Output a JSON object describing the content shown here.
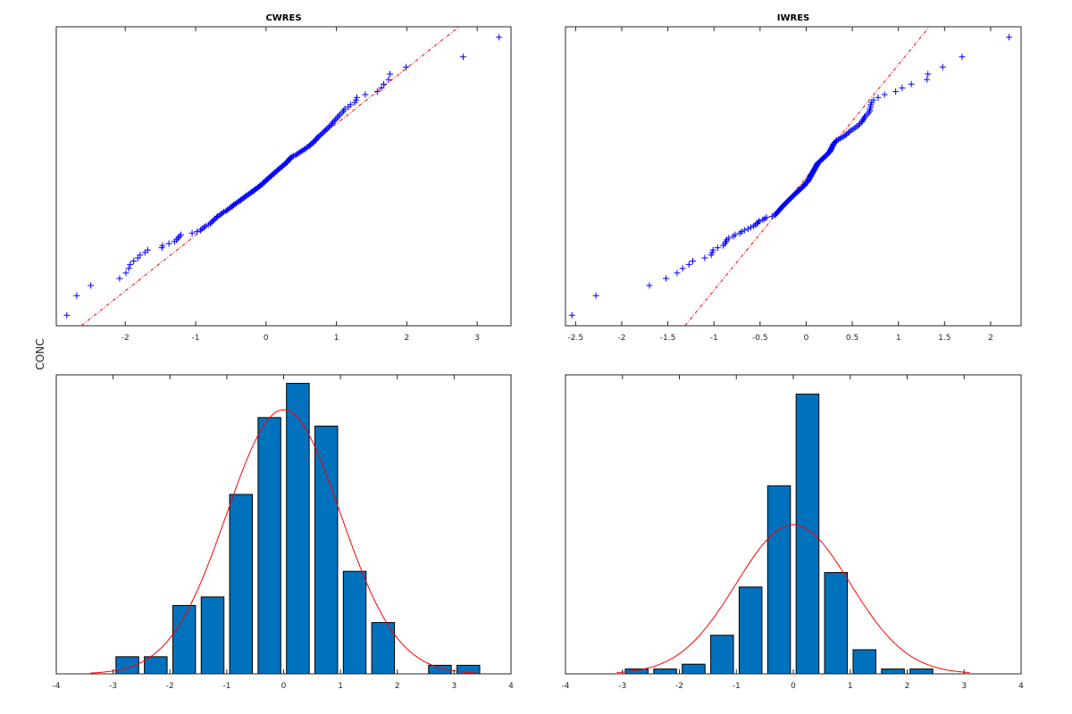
{
  "figure": {
    "ylabel": "CONC"
  },
  "colors": {
    "bar": "#0072BD",
    "bar_edge": "#000000",
    "fit": "#FF0000",
    "points": "#0000FF",
    "refline": "#FF0000",
    "axes": "#262626"
  },
  "chart_data": [
    {
      "type": "scatter",
      "kind": "qq-plot",
      "title": "CWRES",
      "xlim": [
        -2.98,
        3.48
      ],
      "xticks": [
        "-2",
        "-1",
        "0",
        "1",
        "2",
        "3"
      ],
      "y_tick_labels_shown": false,
      "marker": "+",
      "reference_line": "dash-dot quartile line",
      "values": [
        -2.83,
        -2.69,
        -2.49,
        -2.08,
        -1.99,
        -1.95,
        -1.93,
        -1.88,
        -1.82,
        -1.79,
        -1.72,
        -1.68,
        -1.48,
        -1.47,
        -1.38,
        -1.3,
        -1.27,
        -1.25,
        -1.23,
        -1.21,
        -1.05,
        -0.98,
        -0.93,
        -0.91,
        -0.88,
        -0.86,
        -0.82,
        -0.79,
        -0.77,
        -0.76,
        -0.74,
        -0.72,
        -0.7,
        -0.69,
        -0.66,
        -0.64,
        -0.62,
        -0.6,
        -0.57,
        -0.55,
        -0.53,
        -0.51,
        -0.49,
        -0.47,
        -0.46,
        -0.44,
        -0.42,
        -0.4,
        -0.38,
        -0.36,
        -0.35,
        -0.33,
        -0.31,
        -0.29,
        -0.28,
        -0.26,
        -0.24,
        -0.22,
        -0.21,
        -0.19,
        -0.17,
        -0.16,
        -0.14,
        -0.12,
        -0.11,
        -0.09,
        -0.08,
        -0.06,
        -0.05,
        -0.04,
        -0.02,
        -0.01,
        0.0,
        0.01,
        0.03,
        0.04,
        0.05,
        0.07,
        0.08,
        0.09,
        0.11,
        0.12,
        0.13,
        0.15,
        0.16,
        0.17,
        0.19,
        0.2,
        0.22,
        0.23,
        0.24,
        0.26,
        0.27,
        0.29,
        0.3,
        0.31,
        0.32,
        0.33,
        0.34,
        0.35,
        0.37,
        0.39,
        0.42,
        0.44,
        0.46,
        0.48,
        0.5,
        0.52,
        0.54,
        0.56,
        0.58,
        0.6,
        0.62,
        0.63,
        0.65,
        0.67,
        0.68,
        0.7,
        0.71,
        0.72,
        0.74,
        0.75,
        0.77,
        0.79,
        0.81,
        0.83,
        0.84,
        0.86,
        0.88,
        0.9,
        0.92,
        0.94,
        0.95,
        0.97,
        0.99,
        1.01,
        1.03,
        1.05,
        1.08,
        1.1,
        1.12,
        1.17,
        1.2,
        1.26,
        1.28,
        1.29,
        1.41,
        1.58,
        1.64,
        1.67,
        1.74,
        1.76,
        1.99,
        2.8,
        3.31
      ]
    },
    {
      "type": "scatter",
      "kind": "qq-plot",
      "title": "IWRES",
      "xlim": [
        -2.61,
        2.33
      ],
      "xticks": [
        "-2.5",
        "-2",
        "-1.5",
        "-1",
        "-0.5",
        "0",
        "0.5",
        "1",
        "1.5",
        "2"
      ],
      "y_tick_labels_shown": false,
      "marker": "+",
      "reference_line": "dash-dot quartile line",
      "values": [
        -2.54,
        -2.28,
        -1.7,
        -1.52,
        -1.4,
        -1.34,
        -1.27,
        -1.23,
        -1.1,
        -1.03,
        -1.02,
        -1.01,
        -0.96,
        -0.9,
        -0.88,
        -0.87,
        -0.86,
        -0.84,
        -0.79,
        -0.77,
        -0.72,
        -0.7,
        -0.67,
        -0.63,
        -0.6,
        -0.57,
        -0.55,
        -0.53,
        -0.52,
        -0.51,
        -0.47,
        -0.45,
        -0.43,
        -0.37,
        -0.34,
        -0.33,
        -0.32,
        -0.31,
        -0.3,
        -0.29,
        -0.28,
        -0.27,
        -0.26,
        -0.25,
        -0.24,
        -0.23,
        -0.22,
        -0.21,
        -0.2,
        -0.19,
        -0.18,
        -0.17,
        -0.16,
        -0.15,
        -0.14,
        -0.13,
        -0.12,
        -0.11,
        -0.1,
        -0.09,
        -0.08,
        -0.07,
        -0.06,
        -0.05,
        -0.04,
        -0.03,
        -0.02,
        -0.015,
        -0.01,
        0.0,
        0.01,
        0.02,
        0.02,
        0.03,
        0.03,
        0.04,
        0.04,
        0.05,
        0.05,
        0.06,
        0.06,
        0.07,
        0.07,
        0.08,
        0.08,
        0.09,
        0.09,
        0.1,
        0.1,
        0.11,
        0.11,
        0.12,
        0.12,
        0.13,
        0.14,
        0.15,
        0.16,
        0.17,
        0.18,
        0.19,
        0.2,
        0.21,
        0.22,
        0.23,
        0.24,
        0.25,
        0.26,
        0.26,
        0.27,
        0.27,
        0.28,
        0.28,
        0.29,
        0.29,
        0.3,
        0.31,
        0.32,
        0.33,
        0.35,
        0.37,
        0.39,
        0.41,
        0.43,
        0.44,
        0.46,
        0.47,
        0.49,
        0.51,
        0.53,
        0.55,
        0.57,
        0.58,
        0.6,
        0.61,
        0.62,
        0.63,
        0.64,
        0.66,
        0.68,
        0.69,
        0.69,
        0.7,
        0.7,
        0.71,
        0.73,
        0.78,
        0.85,
        0.97,
        1.04,
        1.14,
        1.31,
        1.32,
        1.48,
        1.69,
        2.2
      ]
    },
    {
      "type": "bar",
      "kind": "histogram-with-normal-fit",
      "bin_edges": [
        -3,
        -2.5,
        -2,
        -1.5,
        -1,
        -0.5,
        0,
        0.5,
        1,
        1.5,
        2,
        2.5,
        3,
        3.5
      ],
      "values": [
        2,
        2,
        8,
        9,
        21,
        30,
        34,
        29,
        12,
        6,
        0,
        1,
        1
      ],
      "fit": {
        "distribution": "normal",
        "mean": 0.0,
        "sd": 1.0,
        "x_range": [
          -3.4,
          3.4
        ]
      },
      "xlim": [
        -4,
        4
      ],
      "ylim": [
        0,
        35
      ],
      "xticks": [
        "-4",
        "-3",
        "-2",
        "-1",
        "0",
        "1",
        "2",
        "3",
        "4"
      ],
      "y_tick_labels_shown": false
    },
    {
      "type": "bar",
      "kind": "histogram-with-normal-fit",
      "bin_edges": [
        -3,
        -2.5,
        -2,
        -1.5,
        -1,
        -0.5,
        0,
        0.5,
        1,
        1.5,
        2,
        2.5
      ],
      "values": [
        1,
        1,
        2,
        8,
        18,
        39,
        58,
        21,
        5,
        1,
        1
      ],
      "fit": {
        "distribution": "normal",
        "mean": 0.0,
        "sd": 1.0,
        "x_range": [
          -3.1,
          3.1
        ]
      },
      "xlim": [
        -4,
        4
      ],
      "ylim": [
        0,
        62
      ],
      "xticks": [
        "-4",
        "-3",
        "-2",
        "-1",
        "0",
        "1",
        "2",
        "3",
        "4"
      ],
      "y_tick_labels_shown": false
    }
  ]
}
